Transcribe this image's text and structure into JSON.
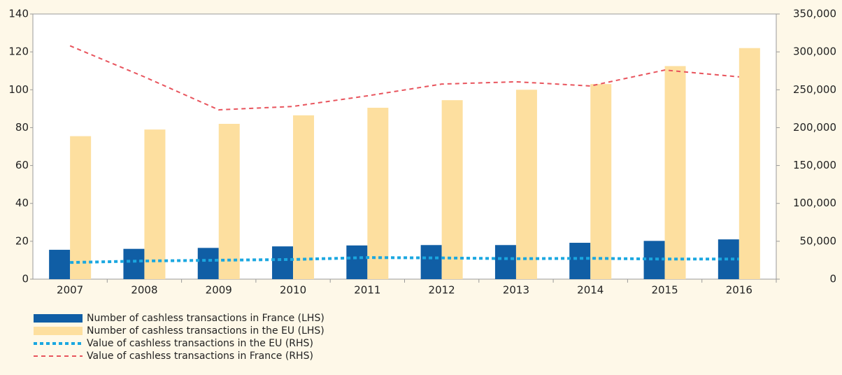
{
  "chart_data": {
    "type": "bar",
    "categories": [
      "2007",
      "2008",
      "2009",
      "2010",
      "2011",
      "2012",
      "2013",
      "2014",
      "2015",
      "2016"
    ],
    "series": [
      {
        "name": "Number of cashless transactions in France (LHS)",
        "type": "bar",
        "color": "#105ea5",
        "values": [
          15.5,
          16,
          16.5,
          17.3,
          17.8,
          18,
          18,
          19.2,
          20.2,
          21
        ]
      },
      {
        "name": "Number of cashless transactions in the EU (LHS)",
        "type": "bar",
        "color": "#fddf9f",
        "values": [
          75.5,
          79,
          82,
          86.5,
          90.5,
          94.5,
          100,
          103,
          112.5,
          122
        ]
      },
      {
        "name": "Value of cashless transactions in the EU (RHS)",
        "type": "line",
        "style": "dotted",
        "axis": "y2",
        "color": "#1aa7e0",
        "values": [
          22000,
          24000,
          25000,
          26000,
          28500,
          28000,
          27000,
          27500,
          26500,
          26500
        ]
      },
      {
        "name": "Value of cashless transactions in France (RHS)",
        "type": "line",
        "style": "dashed",
        "axis": "y2",
        "color": "#e8545d",
        "values": [
          308000,
          267000,
          223500,
          228000,
          242000,
          257500,
          260500,
          255000,
          276000,
          267000
        ]
      }
    ],
    "ylim": [
      0,
      140
    ],
    "yticks": [
      0,
      20,
      40,
      60,
      80,
      100,
      120,
      140
    ],
    "y2lim": [
      0,
      350000
    ],
    "y2ticks": [
      0,
      {
        "value": 50000,
        "label": "50,000"
      },
      {
        "value": 100000,
        "label": "100,000"
      },
      {
        "value": 150000,
        "label": "150,000"
      },
      {
        "value": 200000,
        "label": "200,000"
      },
      {
        "value": 250000,
        "label": "250,000"
      },
      {
        "value": 300000,
        "label": "300,000"
      },
      {
        "value": 350000,
        "label": "350,000"
      }
    ],
    "grid": false
  }
}
